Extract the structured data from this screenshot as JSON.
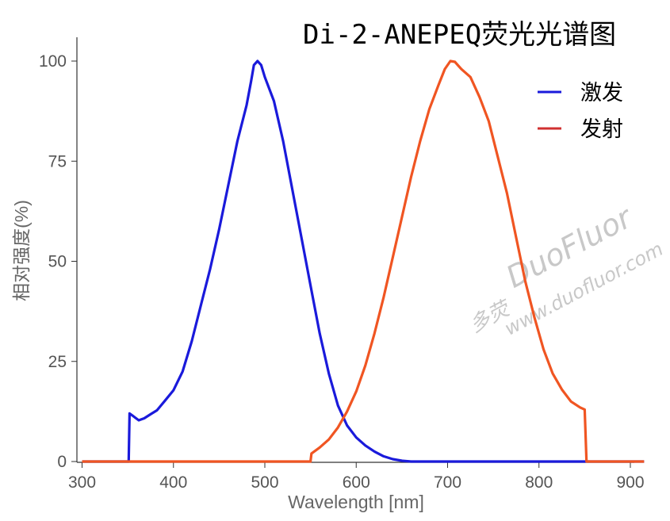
{
  "chart_data": {
    "type": "line",
    "title": "Di-2-ANEPEQ荧光光谱图",
    "xlabel": "Wavelength [nm]",
    "ylabel": "相对强度(%)",
    "xlim": [
      300,
      915
    ],
    "ylim": [
      0,
      100
    ],
    "x_ticks": [
      "300",
      "400",
      "500",
      "600",
      "700",
      "800",
      "900"
    ],
    "y_ticks": [
      "0",
      "25",
      "50",
      "75",
      "100"
    ],
    "grid": false,
    "legend_position": "top-right",
    "series": [
      {
        "name": "激发",
        "color": "#1a1adb",
        "points": [
          [
            300,
            0
          ],
          [
            350,
            0
          ],
          [
            351,
            0
          ],
          [
            352,
            12
          ],
          [
            355,
            11.5
          ],
          [
            358,
            11
          ],
          [
            362,
            10.3
          ],
          [
            368,
            10.8
          ],
          [
            375,
            11.8
          ],
          [
            382,
            12.8
          ],
          [
            390,
            15
          ],
          [
            400,
            17.8
          ],
          [
            410,
            22.5
          ],
          [
            420,
            30
          ],
          [
            430,
            39
          ],
          [
            440,
            48
          ],
          [
            450,
            58
          ],
          [
            460,
            69
          ],
          [
            470,
            80
          ],
          [
            480,
            89
          ],
          [
            485,
            95
          ],
          [
            488,
            99
          ],
          [
            492,
            100
          ],
          [
            496,
            99
          ],
          [
            500,
            96
          ],
          [
            510,
            90
          ],
          [
            520,
            80
          ],
          [
            530,
            68
          ],
          [
            540,
            56
          ],
          [
            550,
            44
          ],
          [
            560,
            32
          ],
          [
            570,
            22
          ],
          [
            580,
            14
          ],
          [
            590,
            9
          ],
          [
            600,
            6
          ],
          [
            610,
            4
          ],
          [
            620,
            2.5
          ],
          [
            630,
            1.3
          ],
          [
            640,
            0.6
          ],
          [
            650,
            0.2
          ],
          [
            660,
            0
          ],
          [
            915,
            0
          ]
        ]
      },
      {
        "name": "发射",
        "color": "#f05522",
        "points": [
          [
            300,
            0
          ],
          [
            550,
            0
          ],
          [
            551,
            2
          ],
          [
            560,
            3.5
          ],
          [
            570,
            5.5
          ],
          [
            580,
            8.5
          ],
          [
            590,
            12.5
          ],
          [
            600,
            17.5
          ],
          [
            610,
            24
          ],
          [
            620,
            32
          ],
          [
            630,
            41
          ],
          [
            640,
            51
          ],
          [
            650,
            61
          ],
          [
            660,
            71
          ],
          [
            670,
            80
          ],
          [
            680,
            88
          ],
          [
            690,
            94
          ],
          [
            697,
            98
          ],
          [
            703,
            100
          ],
          [
            708,
            99.8
          ],
          [
            715,
            98
          ],
          [
            725,
            96
          ],
          [
            735,
            91
          ],
          [
            745,
            85
          ],
          [
            755,
            76
          ],
          [
            765,
            67
          ],
          [
            775,
            56
          ],
          [
            785,
            45
          ],
          [
            795,
            36
          ],
          [
            805,
            28
          ],
          [
            815,
            22
          ],
          [
            825,
            18
          ],
          [
            835,
            15
          ],
          [
            845,
            13.5
          ],
          [
            850,
            13
          ],
          [
            852,
            0
          ],
          [
            915,
            0
          ]
        ]
      }
    ]
  },
  "watermark": {
    "brand": "DuoFluor",
    "url": "www.duofluor.com",
    "logo_text": "多荧"
  }
}
